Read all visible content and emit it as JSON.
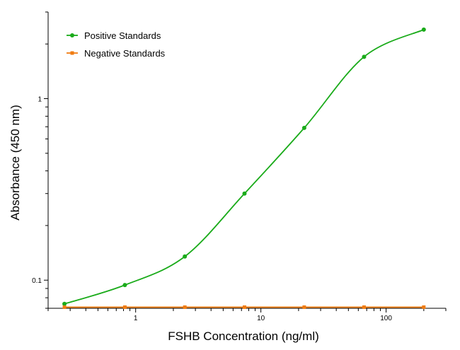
{
  "chart_data": {
    "type": "scatter",
    "title": "",
    "xlabel": "FSHB Concentration (ng/ml)",
    "ylabel": "Absorbance (450 nm)",
    "x_scale": "log",
    "y_scale": "log",
    "xlim": [
      0.2,
      300
    ],
    "ylim": [
      0.07,
      3
    ],
    "x_ticks": [
      {
        "value": 1,
        "label": "1"
      },
      {
        "value": 10,
        "label": "10"
      },
      {
        "value": 100,
        "label": "100"
      }
    ],
    "y_ticks": [
      {
        "value": 0.1,
        "label": "0.1"
      },
      {
        "value": 1,
        "label": "1"
      }
    ],
    "grid": false,
    "legend_position": "top-left",
    "series": [
      {
        "name": "Positive Standards",
        "color": "#1aab1a",
        "marker": "circle",
        "x": [
          0.27,
          0.82,
          2.47,
          7.4,
          22.2,
          66.7,
          200
        ],
        "y": [
          0.074,
          0.094,
          0.135,
          0.3,
          0.69,
          1.7,
          2.4
        ],
        "fit_curve": true
      },
      {
        "name": "Negative Standards",
        "color": "#f07c12",
        "marker": "square",
        "x": [
          0.27,
          0.82,
          2.47,
          7.4,
          22.2,
          66.7,
          200
        ],
        "y": [
          0.071,
          0.071,
          0.071,
          0.071,
          0.071,
          0.071,
          0.071
        ],
        "fit_curve": false
      }
    ]
  }
}
